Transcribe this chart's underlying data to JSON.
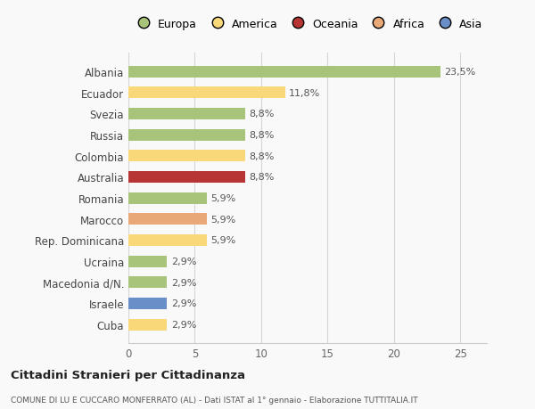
{
  "categories": [
    "Albania",
    "Ecuador",
    "Svezia",
    "Russia",
    "Colombia",
    "Australia",
    "Romania",
    "Marocco",
    "Rep. Dominicana",
    "Ucraina",
    "Macedonia d/N.",
    "Israele",
    "Cuba"
  ],
  "values": [
    23.5,
    11.8,
    8.8,
    8.8,
    8.8,
    8.8,
    5.9,
    5.9,
    5.9,
    2.9,
    2.9,
    2.9,
    2.9
  ],
  "labels": [
    "23,5%",
    "11,8%",
    "8,8%",
    "8,8%",
    "8,8%",
    "8,8%",
    "5,9%",
    "5,9%",
    "5,9%",
    "2,9%",
    "2,9%",
    "2,9%",
    "2,9%"
  ],
  "colors": [
    "#a8c47a",
    "#f9d87a",
    "#a8c47a",
    "#a8c47a",
    "#f9d87a",
    "#b83535",
    "#a8c47a",
    "#e8a878",
    "#f9d87a",
    "#a8c47a",
    "#a8c47a",
    "#6a8fc8",
    "#f9d87a"
  ],
  "continent_colors": {
    "Europa": "#a8c47a",
    "America": "#f9d87a",
    "Oceania": "#b83535",
    "Africa": "#e8a878",
    "Asia": "#6a8fc8"
  },
  "xlim": [
    0,
    27
  ],
  "xticks": [
    0,
    5,
    10,
    15,
    20,
    25
  ],
  "title": "Cittadini Stranieri per Cittadinanza",
  "subtitle": "COMUNE DI LU E CUCCARO MONFERRATO (AL) - Dati ISTAT al 1° gennaio - Elaborazione TUTTITALIA.IT",
  "background_color": "#f9f9f9",
  "bar_height": 0.55,
  "figsize": [
    6.0,
    4.6
  ],
  "dpi": 100
}
